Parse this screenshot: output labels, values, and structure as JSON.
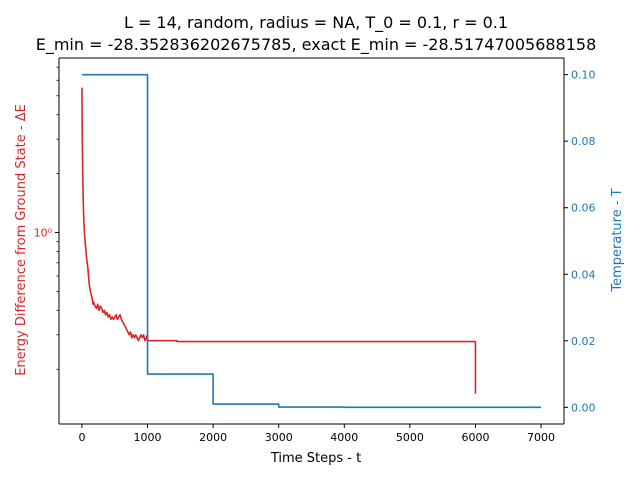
{
  "chart_data": {
    "type": "line",
    "title": "L = 14, random, radius = NA, T_0 = 0.1, r = 0.1",
    "subtitle": "E_min = -28.352836202675785, exact E_min = -28.51747005688158",
    "xlabel": "Time Steps - t",
    "ylabel_left": "Energy Difference from Ground State - ΔE",
    "ylabel_right": "Temperature - T",
    "xlim": [
      -350,
      7350
    ],
    "x_ticks": [
      0,
      1000,
      2000,
      3000,
      4000,
      5000,
      6000,
      7000
    ],
    "x_tick_labels": [
      "0",
      "1000",
      "2000",
      "3000",
      "4000",
      "5000",
      "6000",
      "7000"
    ],
    "left_axis": {
      "scale": "log",
      "ylim": [
        0.105,
        7.8
      ],
      "major_ticks": [
        1.0
      ],
      "major_tick_labels": [
        "10⁰"
      ],
      "minor_ticks": [
        0.2,
        0.3,
        0.4,
        0.5,
        0.6,
        0.7,
        0.8,
        0.9,
        2,
        3,
        4,
        5,
        6,
        7
      ]
    },
    "right_axis": {
      "scale": "linear",
      "ylim": [
        -0.005,
        0.105
      ],
      "ticks": [
        0.0,
        0.02,
        0.04,
        0.06,
        0.08,
        0.1
      ],
      "tick_labels": [
        "0.00",
        "0.02",
        "0.04",
        "0.06",
        "0.08",
        "0.10"
      ]
    },
    "colors": {
      "energy": "#d62728",
      "temperature": "#1f77b4"
    },
    "series": [
      {
        "axis": "left",
        "x": [
          0,
          2,
          5,
          10,
          15,
          20,
          25,
          30,
          40,
          50,
          60,
          70,
          80,
          90,
          100,
          110,
          120,
          130,
          140,
          150,
          160,
          170,
          180,
          190,
          200,
          220,
          240,
          260,
          280,
          300,
          320,
          340,
          360,
          380,
          400,
          420,
          440,
          460,
          480,
          500,
          520,
          540,
          560,
          580,
          600,
          620,
          640,
          660,
          680,
          700,
          720,
          740,
          760,
          780,
          800,
          820,
          840,
          860,
          880,
          900,
          920,
          940,
          960,
          980,
          1000,
          1000,
          1450,
          1450,
          6000,
          6000
        ],
        "y": [
          5.5,
          4.2,
          3.1,
          2.2,
          1.75,
          1.45,
          1.25,
          1.12,
          0.98,
          0.88,
          0.82,
          0.74,
          0.7,
          0.66,
          0.6,
          0.55,
          0.52,
          0.5,
          0.48,
          0.47,
          0.45,
          0.43,
          0.44,
          0.43,
          0.42,
          0.41,
          0.43,
          0.4,
          0.42,
          0.41,
          0.39,
          0.4,
          0.38,
          0.39,
          0.37,
          0.38,
          0.36,
          0.37,
          0.36,
          0.37,
          0.38,
          0.36,
          0.37,
          0.38,
          0.36,
          0.35,
          0.34,
          0.33,
          0.32,
          0.31,
          0.3,
          0.31,
          0.29,
          0.3,
          0.29,
          0.3,
          0.29,
          0.28,
          0.29,
          0.3,
          0.29,
          0.3,
          0.28,
          0.29,
          0.3,
          0.28,
          0.28,
          0.277,
          0.277,
          0.15
        ]
      },
      {
        "axis": "right",
        "x": [
          0,
          1000,
          1000,
          2000,
          2000,
          3000,
          3000,
          4000,
          4000,
          7000
        ],
        "y": [
          0.1,
          0.1,
          0.01,
          0.01,
          0.001,
          0.001,
          0.0001,
          0.0001,
          1e-05,
          1e-05
        ]
      }
    ]
  }
}
